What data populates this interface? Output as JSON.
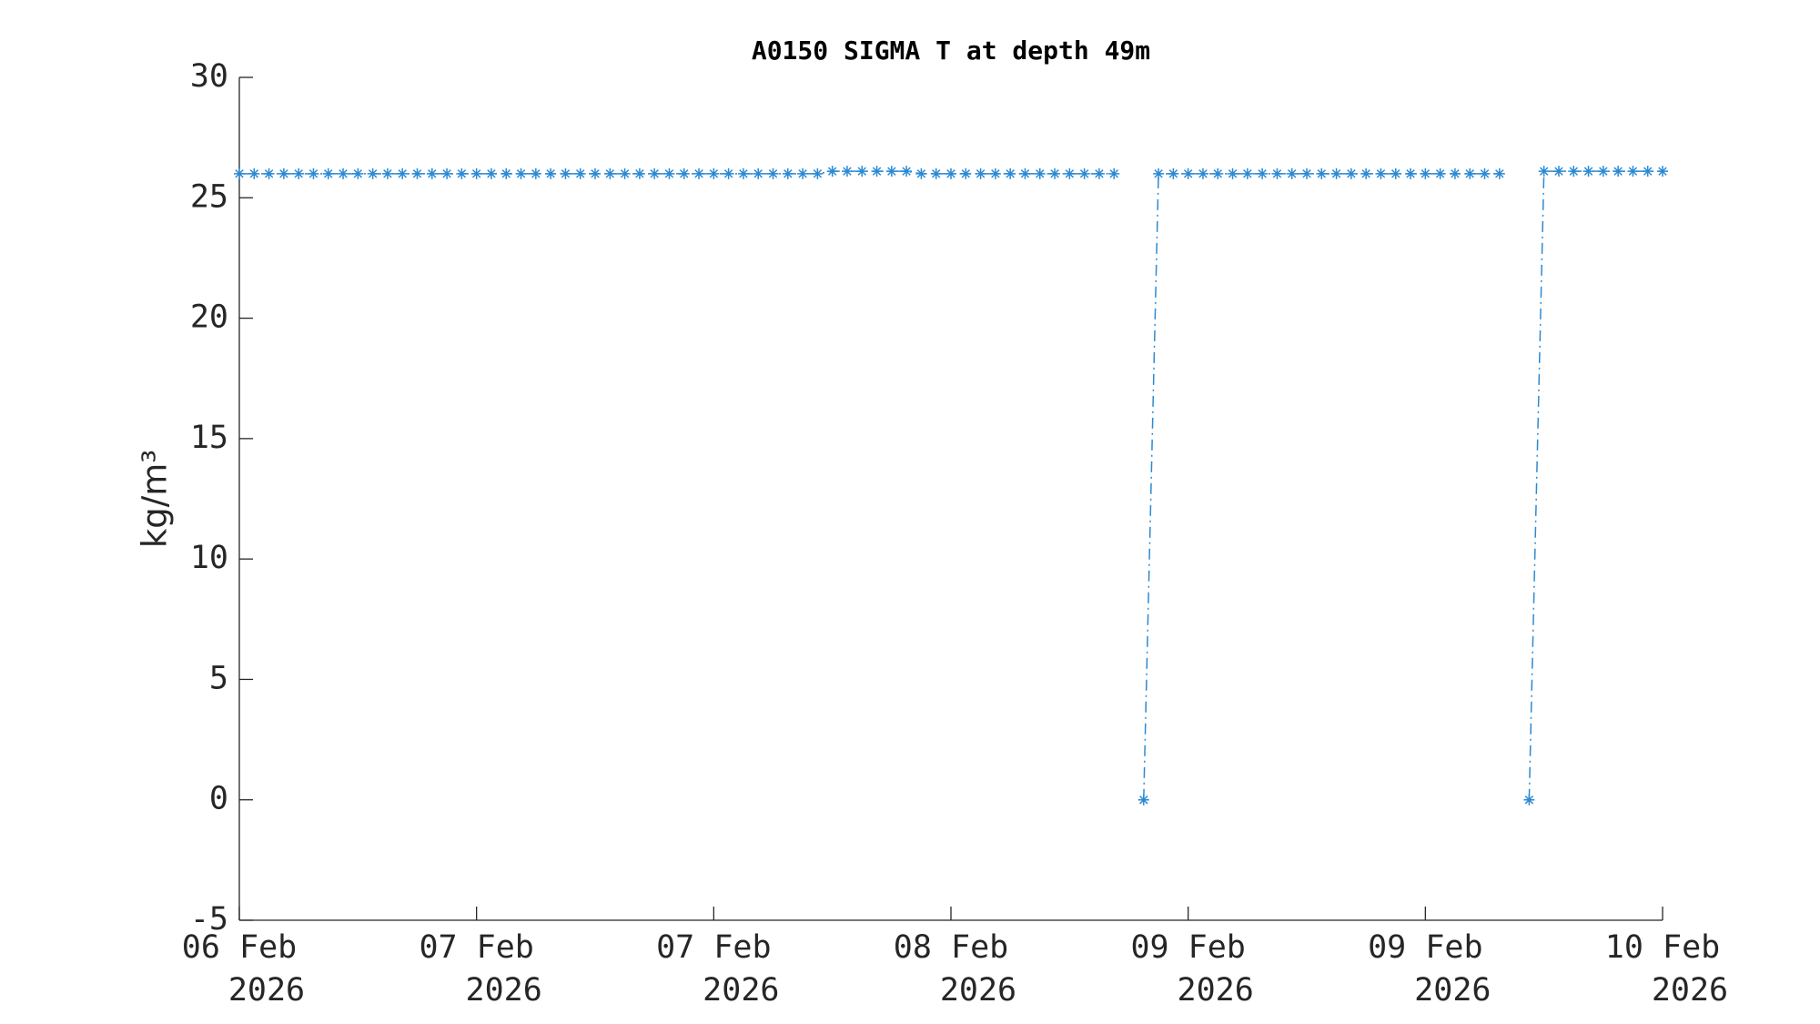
{
  "chart_data": {
    "type": "line",
    "title": "A0150 SIGMA T at depth 49m",
    "y_label": "kg/m³",
    "x": [
      0,
      1,
      2,
      3,
      4,
      5,
      6,
      7,
      8,
      9,
      10,
      11,
      12,
      13,
      14,
      15,
      16,
      17,
      18,
      19,
      20,
      21,
      22,
      23,
      24,
      25,
      26,
      27,
      28,
      29,
      30,
      31,
      32,
      33,
      34,
      35,
      36,
      37,
      38,
      39,
      40,
      41,
      42,
      43,
      44,
      45,
      46,
      47,
      48,
      49,
      50,
      51,
      52,
      53,
      54,
      55,
      56,
      57,
      58,
      59,
      60,
      61,
      62,
      63,
      64,
      65,
      66,
      67,
      68,
      69,
      70,
      71,
      72,
      73,
      74,
      75,
      76,
      77,
      78,
      79,
      80,
      81,
      82,
      83,
      84,
      85,
      86,
      87,
      88,
      89,
      90,
      91,
      92,
      93,
      94,
      95,
      96
    ],
    "series": [
      {
        "name": "SIGMA T",
        "color": "#2b8ad3",
        "values": [
          26,
          26,
          26,
          26,
          26,
          26,
          26,
          26,
          26,
          26,
          26,
          26,
          26,
          26,
          26,
          26,
          26,
          26,
          26,
          26,
          26,
          26,
          26,
          26,
          26,
          26,
          26,
          26,
          26,
          26,
          26,
          26,
          26,
          26,
          26,
          26,
          26,
          26,
          26,
          26,
          26.1,
          26.1,
          26.1,
          26.1,
          26.1,
          26.1,
          26,
          26,
          26,
          26,
          26,
          26,
          26,
          26,
          26,
          26,
          26,
          26,
          26,
          26,
          null,
          0,
          26,
          26,
          26,
          26,
          26,
          26,
          26,
          26,
          26,
          26,
          26,
          26,
          26,
          26,
          26,
          26,
          26,
          26,
          26,
          26,
          26,
          26,
          26,
          26,
          null,
          0,
          26.1,
          26.1,
          26.1,
          26.1,
          26.1,
          26.1,
          26.1,
          26.1,
          26.1
        ]
      }
    ],
    "xlim": [
      0,
      96
    ],
    "xticks": [
      {
        "value": 0,
        "label": [
          "06 Feb",
          "2026"
        ]
      },
      {
        "value": 16,
        "label": [
          "07 Feb",
          "2026"
        ]
      },
      {
        "value": 32,
        "label": [
          "07 Feb",
          "2026"
        ]
      },
      {
        "value": 48,
        "label": [
          "08 Feb",
          "2026"
        ]
      },
      {
        "value": 64,
        "label": [
          "09 Feb",
          "2026"
        ]
      },
      {
        "value": 80,
        "label": [
          "09 Feb",
          "2026"
        ]
      },
      {
        "value": 96,
        "label": [
          "10 Feb",
          "2026"
        ]
      }
    ],
    "ylim": [
      -5,
      30
    ],
    "yticks": [
      -5,
      0,
      5,
      10,
      15,
      20,
      25,
      30
    ],
    "grid": false
  }
}
